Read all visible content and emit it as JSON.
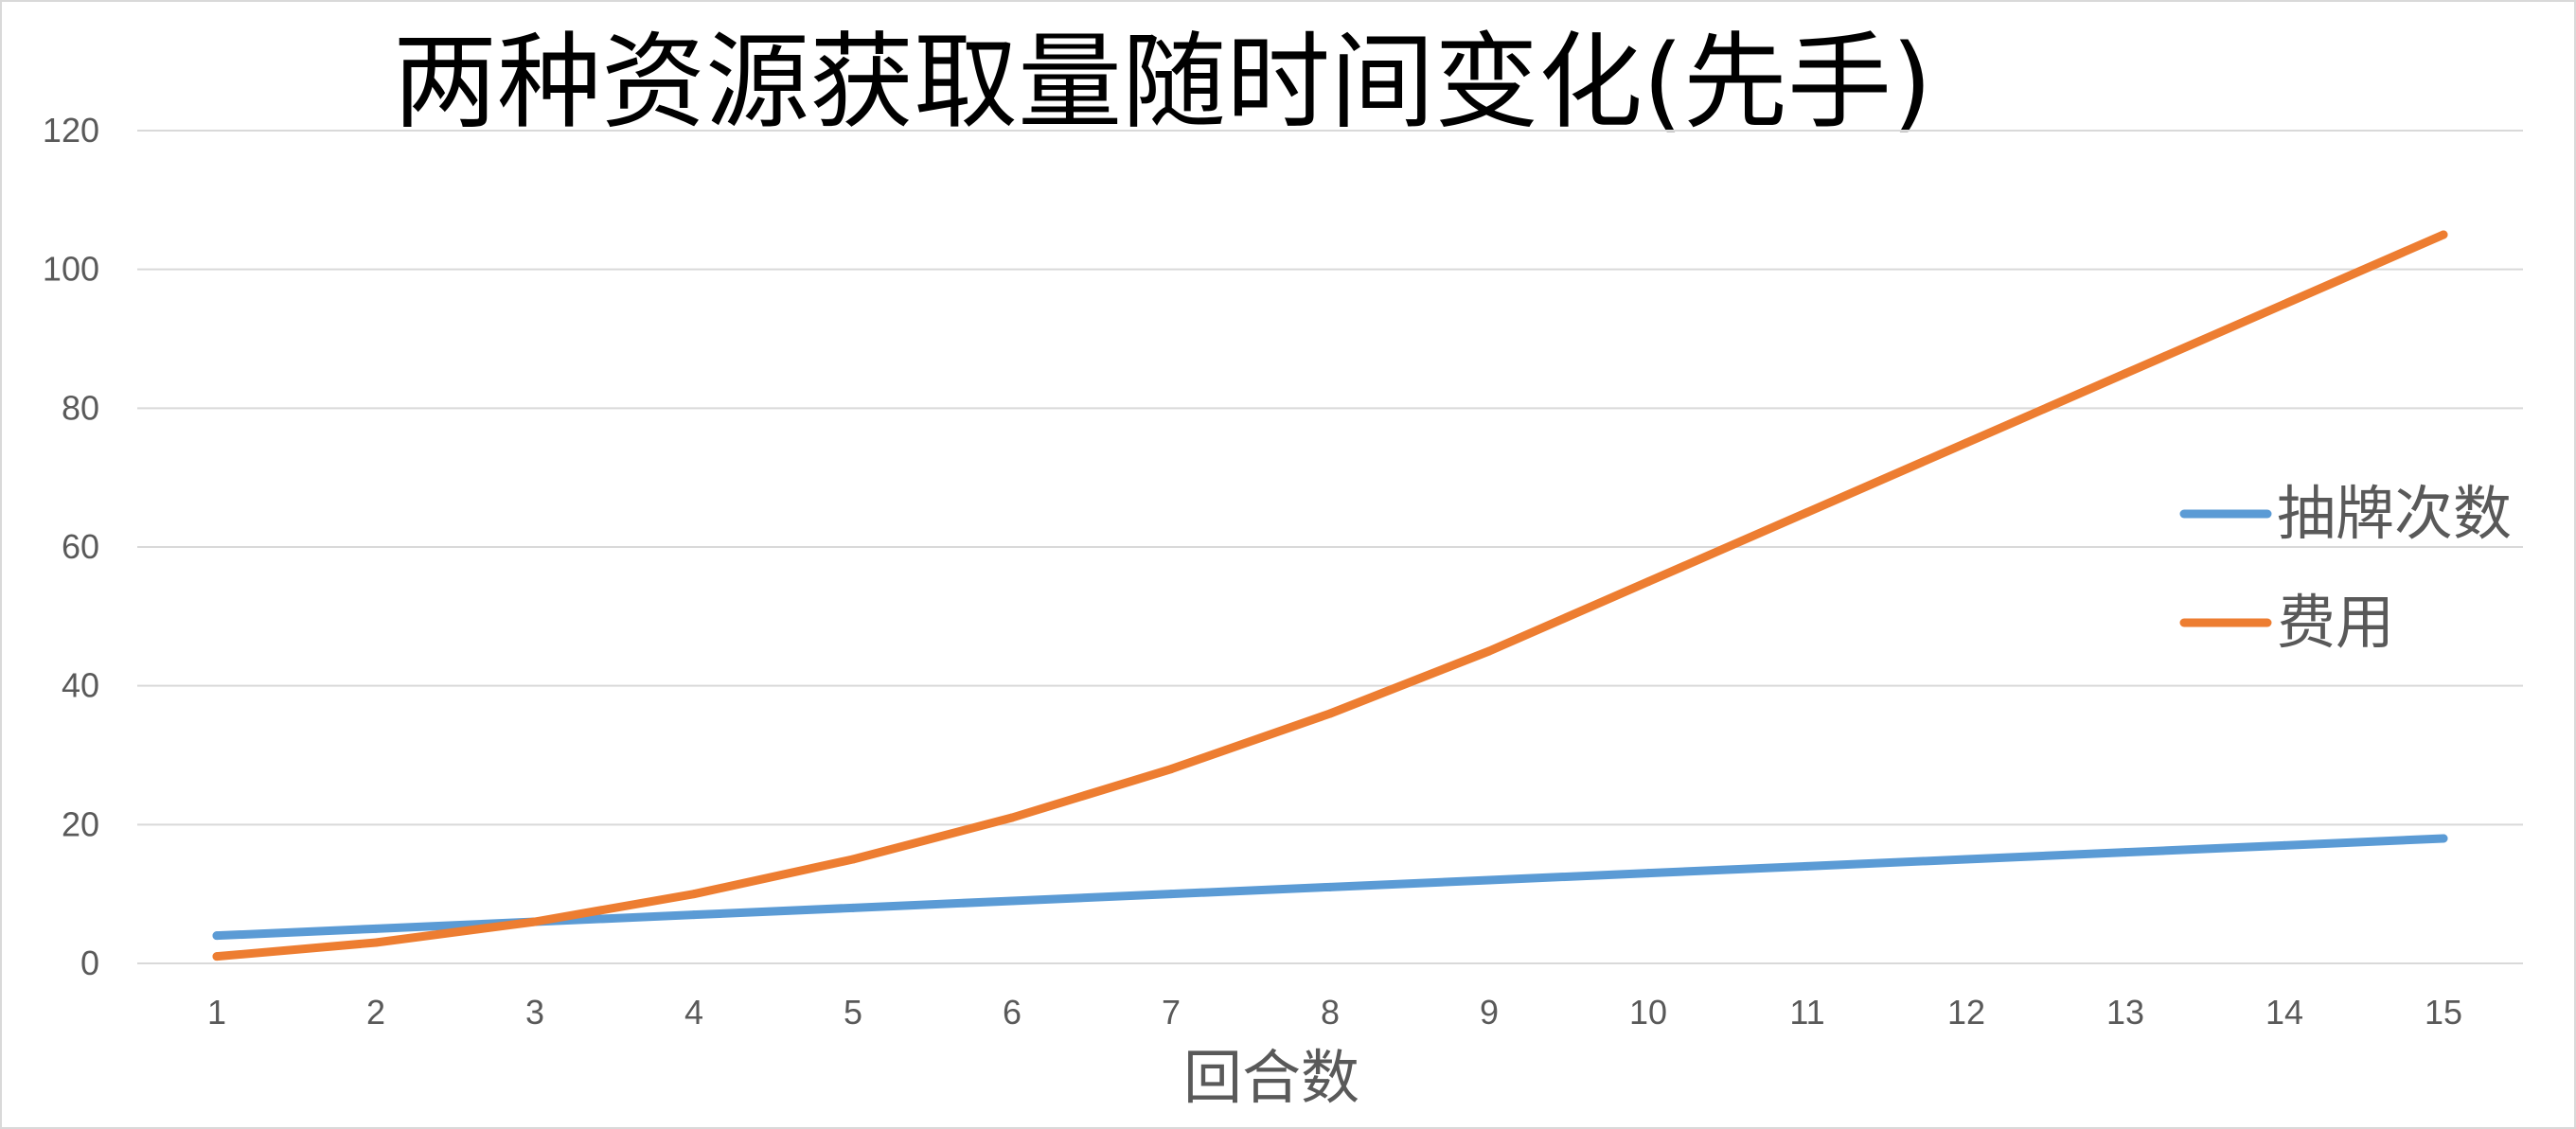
{
  "chart_data": {
    "type": "line",
    "title": "两种资源获取量随时间变化(先手)",
    "xlabel": "回合数",
    "ylabel": "",
    "categories": [
      "1",
      "2",
      "3",
      "4",
      "5",
      "6",
      "7",
      "8",
      "9",
      "10",
      "11",
      "12",
      "13",
      "14",
      "15"
    ],
    "ylim": [
      0,
      120
    ],
    "yticks": [
      0,
      20,
      40,
      60,
      80,
      100,
      120
    ],
    "grid": true,
    "legend_position": "right",
    "series": [
      {
        "name": "抽牌次数",
        "color": "#5b9bd5",
        "values": [
          4,
          5,
          6,
          7,
          8,
          9,
          10,
          11,
          12,
          13,
          14,
          15,
          16,
          17,
          18
        ]
      },
      {
        "name": "费用",
        "color": "#ed7d31",
        "values": [
          1,
          3,
          6,
          10,
          15,
          21,
          28,
          36,
          45,
          55,
          65,
          75,
          85,
          95,
          105
        ]
      }
    ]
  }
}
